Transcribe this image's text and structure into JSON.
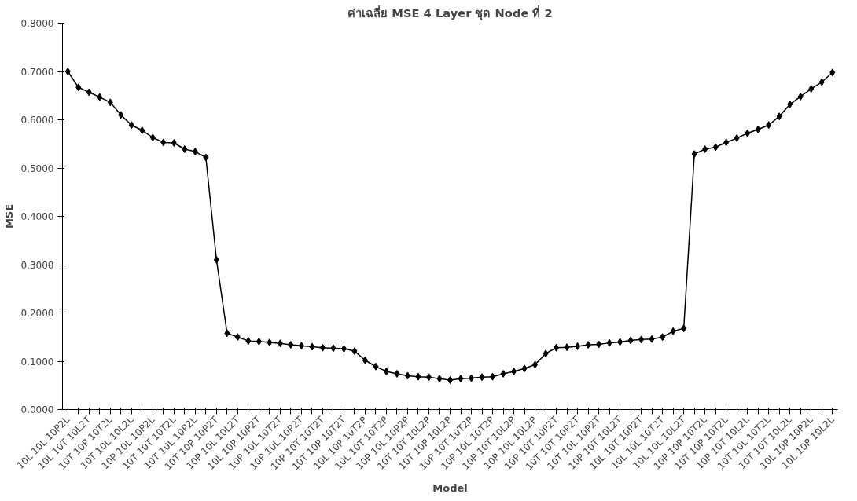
{
  "chart_data": {
    "type": "line",
    "title": "ค่าเฉลี่ย MSE 4 Layer ชุด Node ที่ 2",
    "xlabel": "Model",
    "ylabel": "MSE",
    "categories": [
      "10L 10L 10P2L",
      null,
      "10L 10T 10L2T",
      null,
      "10T 10P 10T2L",
      null,
      "10T 10L 10L2L",
      null,
      "10P 10L 10P2L",
      null,
      "10T 10T 10T2L",
      null,
      "10T 10L 10P2L",
      null,
      "10T 10P 10P2T",
      null,
      "10P 10L 10L2T",
      null,
      "10L 10P 10P2T",
      null,
      "10P 10L 10T2T",
      null,
      "10P 10L 10P2T",
      null,
      "10P 10T 10T2T",
      null,
      "10T 10P 10T2T",
      null,
      "10L 10P 10T2P",
      null,
      "10L 10T 10T2P",
      null,
      "10P 10L 10P2P",
      null,
      "10T 10T 10L2P",
      null,
      "10T 10P 10L2P",
      null,
      "10P 10T 10T2P",
      null,
      "10P 10L 10T2P",
      null,
      "10P 10T 10L2P",
      null,
      "10P 10L 10L2P",
      null,
      "10P 10T 10P2T",
      null,
      "10T 10T 10P2T",
      null,
      "10T 10L 10P2T",
      null,
      "10P 10T 10L2T",
      null,
      "10L 10T 10P2T",
      null,
      "10L 10L 10T2T",
      null,
      "10L 10L 10L2T",
      null,
      "10P 10P 10T2L",
      null,
      "10T 10P 10T2L",
      null,
      "10P 10T 10L2L",
      null,
      "10T 10L 10T2L",
      null,
      "10T 10T 10L2L",
      null,
      "10L 10P 10P2L",
      null,
      "10L 10P 10L2L"
    ],
    "series": [
      {
        "color": "#000000",
        "values": [
          0.7,
          0.667,
          0.657,
          0.647,
          0.636,
          0.61,
          0.589,
          0.578,
          0.563,
          0.553,
          0.552,
          0.539,
          0.534,
          0.522,
          0.31,
          0.158,
          0.15,
          0.142,
          0.141,
          0.139,
          0.137,
          0.134,
          0.132,
          0.13,
          0.128,
          0.127,
          0.126,
          0.121,
          0.102,
          0.089,
          0.079,
          0.074,
          0.07,
          0.068,
          0.067,
          0.064,
          0.061,
          0.064,
          0.065,
          0.067,
          0.068,
          0.074,
          0.079,
          0.085,
          0.093,
          0.116,
          0.128,
          0.129,
          0.131,
          0.134,
          0.135,
          0.138,
          0.14,
          0.143,
          0.145,
          0.146,
          0.15,
          0.162,
          0.168,
          0.529,
          0.539,
          0.543,
          0.553,
          0.562,
          0.572,
          0.58,
          0.589,
          0.607,
          0.632,
          0.648,
          0.664,
          0.678,
          0.698
        ]
      }
    ],
    "ylim": [
      0,
      0.8
    ],
    "yticks": [
      {
        "value": 0,
        "label": "0.0000"
      },
      {
        "value": 0.1,
        "label": "0.1000"
      },
      {
        "value": 0.2,
        "label": "0.2000"
      },
      {
        "value": 0.3,
        "label": "0.3000"
      },
      {
        "value": 0.4,
        "label": "0.4000"
      },
      {
        "value": 0.5,
        "label": "0.5000"
      },
      {
        "value": 0.6,
        "label": "0.6000"
      },
      {
        "value": 0.7,
        "label": "0.7000"
      },
      {
        "value": 0.8,
        "label": "0.8000"
      }
    ],
    "grid": false,
    "marker": "diamond",
    "line_style": "solid"
  }
}
